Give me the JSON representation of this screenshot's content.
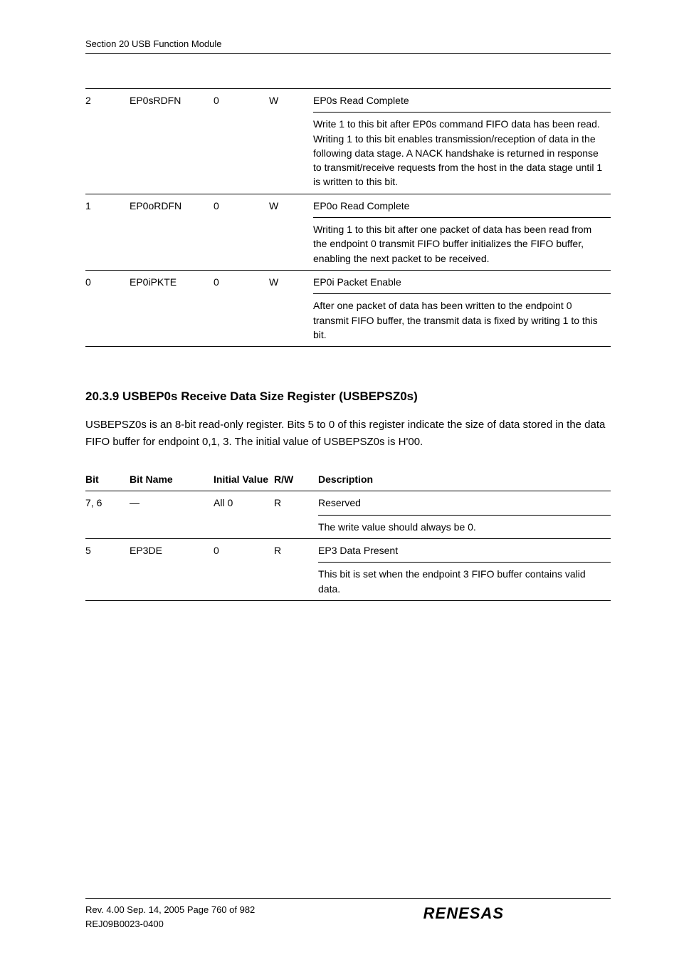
{
  "runningHead": "Section 20   USB Function Module",
  "table1": {
    "rows": [
      {
        "bit": "2",
        "name": "EP0sRDFN",
        "init": "0",
        "rw": "W",
        "desc": "EP0s Read Complete"
      },
      {
        "bit": "",
        "name": "",
        "init": "",
        "rw": "",
        "desc": "Write 1 to this bit after EP0s command FIFO data has been read. Writing 1 to this bit enables transmission/reception of data in the following data stage. A NACK handshake is returned in response to transmit/receive requests from the host in the data stage until 1 is written to this bit."
      },
      {
        "bit": "1",
        "name": "EP0oRDFN",
        "init": "0",
        "rw": "W",
        "desc": "EP0o Read Complete"
      },
      {
        "bit": "",
        "name": "",
        "init": "",
        "rw": "",
        "desc": "Writing 1 to this bit after one packet of data has been read from the endpoint 0 transmit FIFO buffer initializes the FIFO buffer, enabling the next packet to be received."
      },
      {
        "bit": "0",
        "name": "EP0iPKTE",
        "init": "0",
        "rw": "W",
        "desc": "EP0i Packet Enable"
      },
      {
        "bit": "",
        "name": "",
        "init": "",
        "rw": "",
        "desc": "After one packet of data has been written to the endpoint 0 transmit FIFO buffer, the transmit data is fixed by writing 1 to this bit."
      }
    ]
  },
  "sectionHeading": "20.3.9 USBEP0s Receive Data Size Register (USBEPSZ0s)",
  "sectionPara": "USBEPSZ0s is an 8-bit read-only register. Bits 5 to 0 of this register indicate the size of data stored in the data FIFO buffer for endpoint 0,1, 3. The initial value of USBEPSZ0s is H'00.",
  "table2": {
    "head": {
      "bit": "Bit",
      "name": "Bit Name",
      "init": "Initial Value",
      "rw": "R/W",
      "desc": "Description"
    },
    "rows": [
      {
        "bit": "7, 6",
        "name": "—",
        "init": "All 0",
        "rw": "R",
        "desc": "Reserved"
      },
      {
        "bit": "",
        "name": "",
        "init": "",
        "rw": "",
        "desc": "The write value should always be 0."
      },
      {
        "bit": "5",
        "name": "EP3DE",
        "init": "0",
        "rw": "R",
        "desc": "EP3 Data Present"
      },
      {
        "bit": "",
        "name": "",
        "init": "",
        "rw": "",
        "desc": "This bit is set when the endpoint 3 FIFO buffer contains valid data."
      }
    ]
  },
  "footer": {
    "line1": "Rev. 4.00  Sep. 14, 2005  Page 760 of 982",
    "line2": "REJ09B0023-0400",
    "logo": "RENESAS"
  }
}
